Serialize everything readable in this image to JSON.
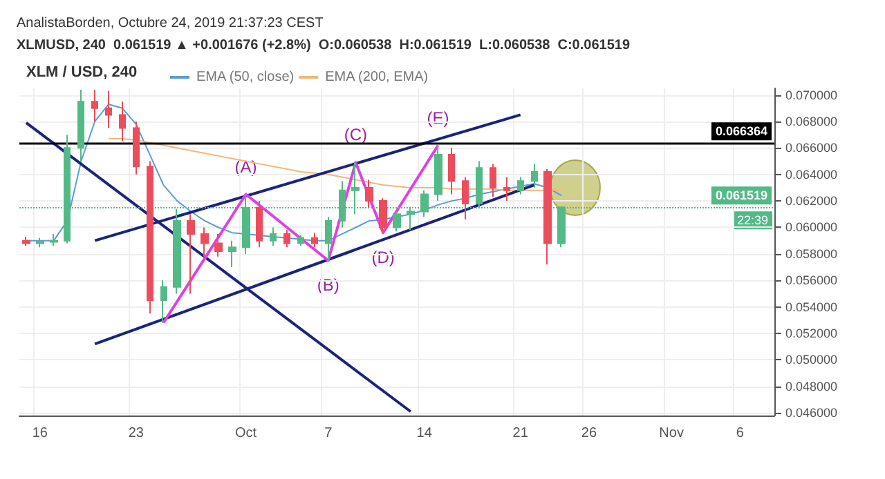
{
  "chart_data": {
    "type": "candlestick",
    "title": "XLM / USD, 240",
    "subtitle": "AnalistaBorden, Octubre 24, 2019 21:37:23 CEST",
    "categories": [
      null,
      "16",
      null,
      null,
      null,
      null,
      null,
      null,
      "23",
      null,
      null,
      null,
      null,
      null,
      null,
      null,
      "Oct",
      null,
      null,
      null,
      null,
      null,
      "7",
      null,
      null,
      null,
      null,
      null,
      null,
      "14",
      null,
      null,
      null,
      null,
      null,
      null,
      "21",
      null,
      null,
      null,
      null,
      "26",
      null,
      null,
      null,
      null,
      null,
      "Nov",
      null,
      null,
      null,
      null,
      "6",
      null,
      null
    ],
    "ohlc": [
      [
        0.059,
        0.0593,
        0.0586,
        0.0588
      ],
      [
        0.0588,
        0.0592,
        0.0585,
        0.0589
      ],
      [
        0.0589,
        0.0595,
        0.0586,
        0.059
      ],
      [
        0.059,
        0.067,
        0.0588,
        0.066
      ],
      [
        0.066,
        0.0704,
        0.065,
        0.0695
      ],
      [
        0.0695,
        0.0704,
        0.068,
        0.069
      ],
      [
        0.069,
        0.0703,
        0.0675,
        0.0685
      ],
      [
        0.0685,
        0.0695,
        0.0665,
        0.0675
      ],
      [
        0.0675,
        0.068,
        0.064,
        0.0646
      ],
      [
        0.0646,
        0.065,
        0.0535,
        0.0545
      ],
      [
        0.0545,
        0.056,
        0.0528,
        0.0555
      ],
      [
        0.0555,
        0.0614,
        0.055,
        0.0605
      ],
      [
        0.0605,
        0.061,
        0.055,
        0.0595
      ],
      [
        0.0595,
        0.06,
        0.0578,
        0.0588
      ],
      [
        0.0588,
        0.0595,
        0.0578,
        0.0582
      ],
      [
        0.0582,
        0.059,
        0.057,
        0.0585
      ],
      [
        0.0585,
        0.0625,
        0.058,
        0.0615
      ],
      [
        0.0615,
        0.062,
        0.0585,
        0.059
      ],
      [
        0.059,
        0.06,
        0.0586,
        0.0595
      ],
      [
        0.0595,
        0.0598,
        0.0585,
        0.0588
      ],
      [
        0.0588,
        0.0594,
        0.0586,
        0.0592
      ],
      [
        0.0592,
        0.0596,
        0.0585,
        0.0588
      ],
      [
        0.0588,
        0.0608,
        0.0575,
        0.0605
      ],
      [
        0.0605,
        0.0635,
        0.06,
        0.0628
      ],
      [
        0.0628,
        0.0649,
        0.061,
        0.063
      ],
      [
        0.063,
        0.0636,
        0.0615,
        0.062
      ],
      [
        0.062,
        0.0622,
        0.0596,
        0.06
      ],
      [
        0.06,
        0.0612,
        0.0597,
        0.061
      ],
      [
        0.061,
        0.0615,
        0.0598,
        0.0612
      ],
      [
        0.0612,
        0.0628,
        0.0608,
        0.0625
      ],
      [
        0.0625,
        0.0662,
        0.062,
        0.0655
      ],
      [
        0.0655,
        0.066,
        0.0625,
        0.0635
      ],
      [
        0.0635,
        0.0638,
        0.0606,
        0.0618
      ],
      [
        0.0618,
        0.065,
        0.0615,
        0.0645
      ],
      [
        0.0645,
        0.0648,
        0.0623,
        0.063
      ],
      [
        0.063,
        0.0638,
        0.062,
        0.0628
      ],
      [
        0.0628,
        0.0638,
        0.0625,
        0.0635
      ],
      [
        0.0635,
        0.0648,
        0.063,
        0.0642
      ],
      [
        0.0642,
        0.0644,
        0.0572,
        0.0588
      ],
      [
        0.0588,
        0.061519,
        0.0585,
        0.061519
      ],
      null,
      null,
      null,
      null,
      null,
      null,
      null,
      null,
      null,
      null,
      null,
      null,
      null,
      null,
      null
    ],
    "series": [
      {
        "name": "EMA (50, close)",
        "type": "line",
        "color": "#5b9bd5",
        "values": [
          0.059,
          0.059,
          0.059,
          0.0605,
          0.065,
          0.068,
          0.0693,
          0.069,
          0.0678,
          0.0655,
          0.0632,
          0.062,
          0.0612,
          0.0605,
          0.06,
          0.0596,
          0.0595,
          0.0594,
          0.0593,
          0.0592,
          0.0591,
          0.059,
          0.059,
          0.0595,
          0.06,
          0.0605,
          0.0606,
          0.0608,
          0.061,
          0.0613,
          0.0617,
          0.062,
          0.0622,
          0.0625,
          0.0627,
          0.0629,
          0.0631,
          0.0633,
          0.063,
          0.0624,
          null,
          null,
          null,
          null,
          null,
          null,
          null,
          null,
          null,
          null,
          null,
          null,
          null,
          null,
          null
        ]
      },
      {
        "name": "EMA (200, EMA)",
        "type": "line",
        "color": "#f0b878",
        "values": [
          null,
          null,
          null,
          null,
          null,
          null,
          0.0667,
          0.0667,
          0.0666,
          0.0664,
          0.0662,
          0.066,
          0.0658,
          0.0656,
          0.0654,
          0.0652,
          0.065,
          0.0648,
          0.0646,
          0.0644,
          0.0642,
          0.0641,
          0.064,
          0.0638,
          0.0636,
          0.0634,
          0.0632,
          0.0631,
          0.063,
          0.063,
          0.063,
          0.0629,
          0.0629,
          0.0629,
          0.0629,
          0.0628,
          0.0628,
          0.0628,
          0.0628,
          0.0628,
          null,
          null,
          null,
          null,
          null,
          null,
          null,
          null,
          null,
          null,
          null,
          null,
          null,
          null,
          null
        ]
      },
      {
        "type": "line",
        "color": "#1a237e",
        "values": [
          null,
          null,
          null,
          null,
          null,
          0.059,
          null,
          null,
          null,
          null,
          null,
          null,
          null,
          null,
          null,
          null,
          null,
          null,
          null,
          null,
          null,
          null,
          null,
          null,
          null,
          null,
          null,
          null,
          null,
          null,
          null,
          null,
          null,
          null,
          null,
          null,
          0.0685,
          null,
          null,
          null,
          null,
          null,
          null,
          null,
          null,
          null,
          null,
          null,
          null,
          null,
          null,
          null,
          null,
          null,
          null
        ]
      },
      {
        "type": "line",
        "color": "#1a237e",
        "values": [
          null,
          null,
          null,
          null,
          null,
          0.0512,
          null,
          null,
          null,
          null,
          null,
          null,
          null,
          null,
          null,
          null,
          null,
          null,
          null,
          null,
          null,
          null,
          null,
          null,
          null,
          null,
          null,
          null,
          null,
          null,
          null,
          null,
          null,
          null,
          null,
          null,
          null,
          0.0632,
          null,
          null,
          null,
          null,
          null,
          null,
          null,
          null,
          null,
          null,
          null,
          null,
          null,
          null,
          null,
          null,
          null
        ]
      },
      {
        "type": "line",
        "color": "#1a237e",
        "values": [
          0.0679,
          null,
          null,
          null,
          null,
          null,
          null,
          null,
          null,
          null,
          null,
          null,
          null,
          null,
          null,
          null,
          null,
          null,
          null,
          null,
          null,
          null,
          null,
          null,
          null,
          null,
          null,
          null,
          0.0461,
          null,
          null,
          null,
          null,
          null,
          null,
          null,
          null,
          null,
          null,
          null,
          null,
          null,
          null,
          null,
          null,
          null,
          null,
          null,
          null,
          null,
          null,
          null,
          null,
          null,
          null
        ]
      },
      {
        "type": "line",
        "color": "#e040e0",
        "values": [
          null,
          null,
          null,
          null,
          null,
          null,
          null,
          null,
          null,
          null,
          0.0528,
          null,
          null,
          null,
          null,
          null,
          0.0625,
          null,
          null,
          null,
          null,
          null,
          0.0575,
          null,
          0.0649,
          null,
          0.0596,
          null,
          null,
          null,
          0.0662,
          null,
          null,
          null,
          null,
          null,
          null,
          null,
          null,
          null,
          null,
          null,
          null,
          null,
          null,
          null,
          null,
          null,
          null,
          null,
          null,
          null,
          null,
          null,
          null
        ]
      }
    ],
    "annotations": [
      "XLMUSD, 240  0.061519 ▲ +0.001676 (+2.8%)  O:0.060538  H:0.061519  L:0.060538  C:0.061519",
      {
        "text": "(A)",
        "x": "Oct",
        "y": 0.0625
      },
      {
        "text": "(B)",
        "x": "7",
        "y": 0.0575
      },
      {
        "text": "(C)",
        "y": 0.0649
      },
      {
        "text": "(D)",
        "y": 0.0596
      },
      {
        "text": "(E)",
        "y": 0.0662
      },
      "22:39"
    ],
    "ref_lines": [
      {
        "axis": "y",
        "value": 0.066364,
        "label": "0.066364",
        "color": "#000000",
        "line_style": "solid"
      },
      {
        "axis": "y",
        "value": 0.061519,
        "label": "0.061519",
        "color": "#53b987",
        "line_style": "dotted"
      }
    ],
    "ylim": [
      0.0458,
      0.0705
    ],
    "yticks": [
      {
        "value": 0.046,
        "label": "0.046000"
      },
      {
        "value": 0.048,
        "label": "0.048000"
      },
      {
        "value": 0.05,
        "label": "0.050000"
      },
      {
        "value": 0.052,
        "label": "0.052000"
      },
      {
        "value": 0.054,
        "label": "0.054000"
      },
      {
        "value": 0.056,
        "label": "0.056000"
      },
      {
        "value": 0.058,
        "label": "0.058000"
      },
      {
        "value": 0.06,
        "label": "0.060000"
      },
      {
        "value": 0.062,
        "label": "0.062000"
      },
      {
        "value": 0.064,
        "label": "0.064000"
      },
      {
        "value": 0.066,
        "label": "0.066000"
      },
      {
        "value": 0.068,
        "label": "0.068000"
      },
      {
        "value": 0.07,
        "label": "0.070000"
      }
    ],
    "grid": true,
    "legend": "top left"
  }
}
